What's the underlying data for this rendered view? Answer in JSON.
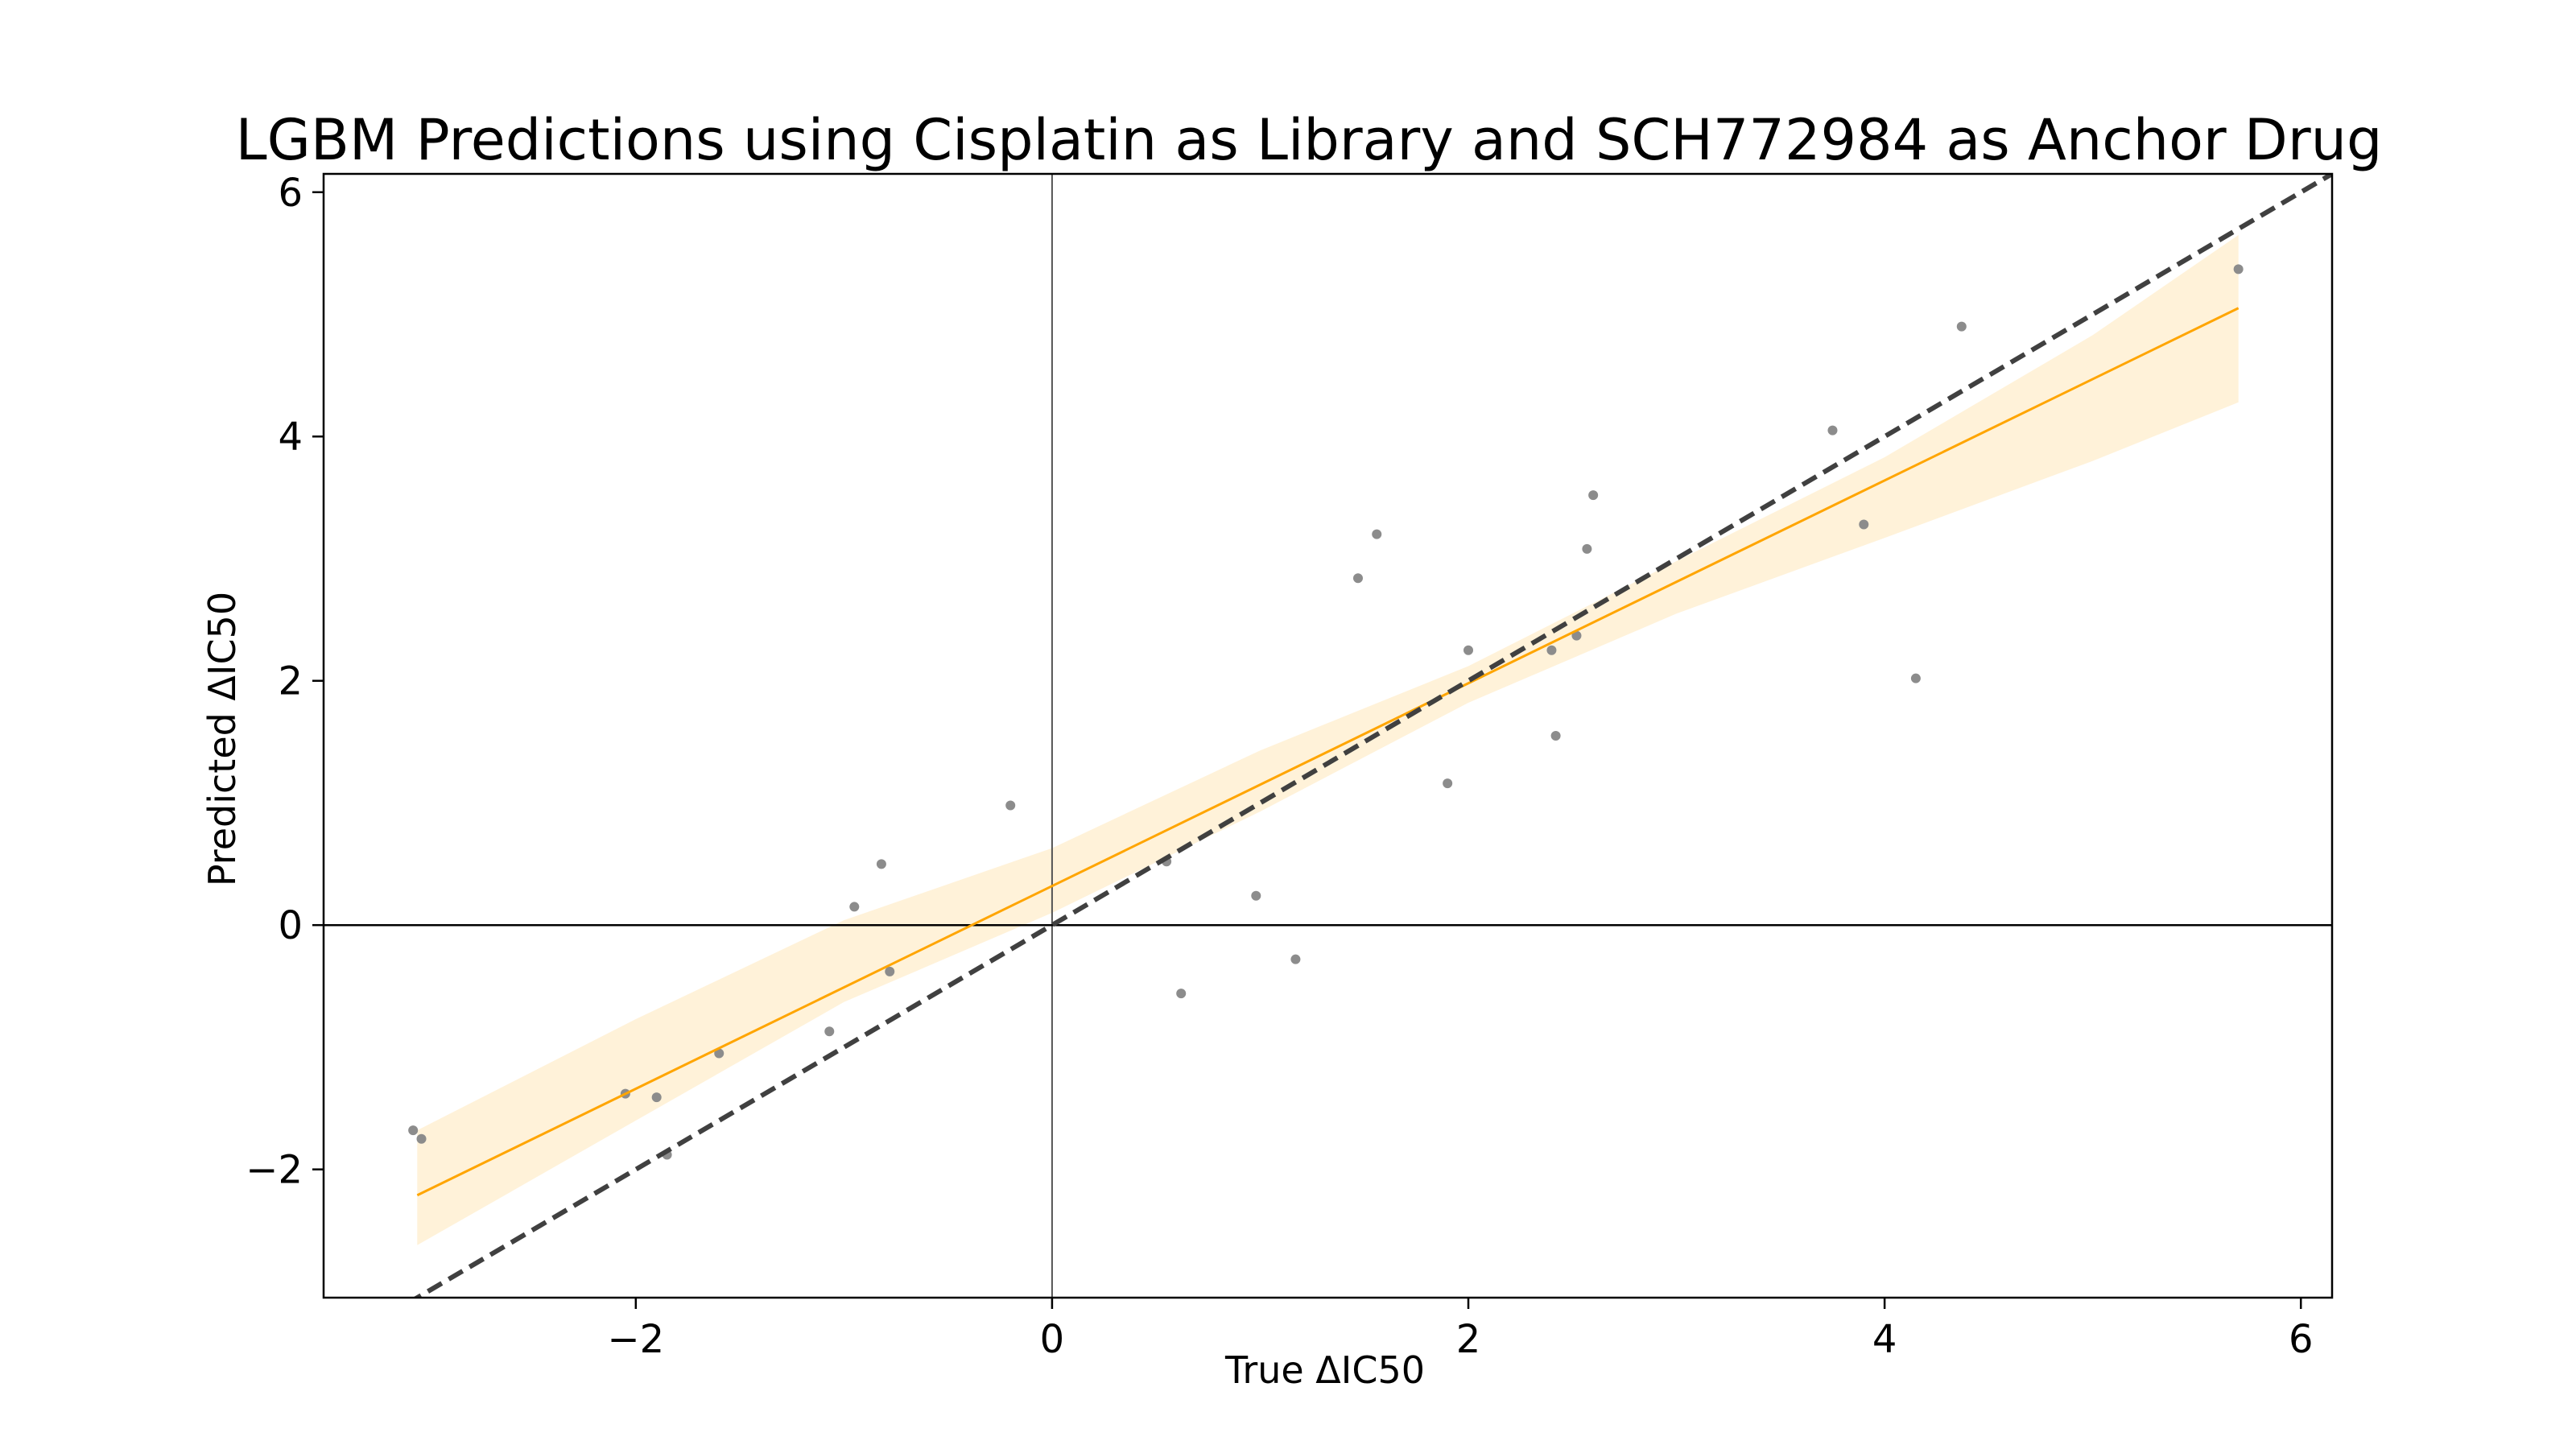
{
  "chart_data": {
    "type": "scatter",
    "title": "LGBM Predictions using Cisplatin as Library and SCH772984 as Anchor Drug",
    "xlabel": "True ΔIC50",
    "ylabel": "Predicted ΔIC50",
    "xlim": [
      -3.5,
      6.15
    ],
    "ylim": [
      -3.05,
      6.15
    ],
    "x_ticks": [
      -2,
      0,
      2,
      4,
      6
    ],
    "y_ticks": [
      -2,
      0,
      2,
      4,
      6
    ],
    "x_tick_labels": [
      "−2",
      "0",
      "2",
      "4",
      "6"
    ],
    "y_tick_labels": [
      "−2",
      "0",
      "2",
      "4",
      "6"
    ],
    "grid": false,
    "reference_lines": {
      "x_zero": true,
      "y_zero": true,
      "identity_dashed": true
    },
    "regression": {
      "slope": 0.83,
      "intercept": 0.32,
      "x_range": [
        -3.05,
        5.7
      ]
    },
    "confidence_band": {
      "x": [
        -3.05,
        -2.0,
        -1.0,
        0.0,
        1.0,
        2.0,
        3.0,
        4.0,
        5.0,
        5.7
      ],
      "lower": [
        -2.62,
        -1.6,
        -0.63,
        0.1,
        0.93,
        1.82,
        2.55,
        3.17,
        3.8,
        4.28
      ],
      "upper": [
        -1.68,
        -0.77,
        0.04,
        0.63,
        1.43,
        2.12,
        2.98,
        3.83,
        4.83,
        5.65
      ]
    },
    "series": [
      {
        "x": [
          -3.07,
          -3.03,
          -2.05,
          -1.9,
          -1.85,
          -1.6,
          -1.07,
          -0.95,
          -0.82,
          -0.78,
          -0.2,
          0.55,
          0.62,
          0.98,
          1.17,
          1.47,
          1.56,
          1.9,
          2.0,
          2.4,
          2.42,
          2.52,
          2.57,
          2.6,
          3.75,
          3.9,
          4.15,
          4.37,
          5.7
        ],
        "y": [
          -1.68,
          -1.75,
          -1.38,
          -1.41,
          -1.88,
          -1.05,
          -0.87,
          0.15,
          0.5,
          -0.38,
          0.98,
          0.52,
          -0.56,
          0.24,
          -0.28,
          2.84,
          3.2,
          1.16,
          2.25,
          2.25,
          1.55,
          2.37,
          3.08,
          3.52,
          4.05,
          3.28,
          2.02,
          4.9,
          5.37
        ]
      }
    ],
    "colors": {
      "points": "#8c8c8c",
      "regression_line": "#ffa500",
      "confidence_band": "#ffa500",
      "identity_line": "#404040",
      "zero_lines": "#000000"
    }
  }
}
